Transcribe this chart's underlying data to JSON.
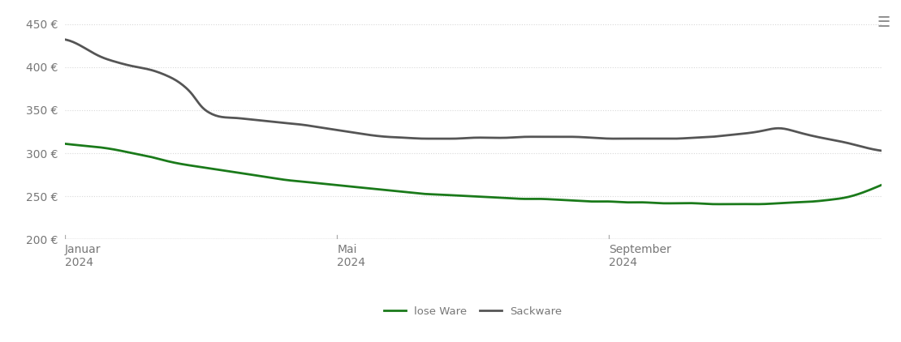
{
  "lose_ware_x": [
    0,
    2,
    4,
    6,
    8,
    10,
    12,
    14,
    16,
    18,
    20,
    22,
    24,
    26,
    28,
    30,
    32,
    34,
    36,
    38,
    40,
    42,
    44,
    46,
    48,
    50,
    52,
    54,
    56,
    58,
    60,
    62,
    64,
    66,
    68,
    70,
    72,
    74,
    76,
    78,
    80,
    82,
    84,
    86,
    88,
    90,
    92,
    94,
    96
  ],
  "lose_ware_y": [
    311,
    309,
    307,
    304,
    300,
    296,
    291,
    287,
    284,
    281,
    278,
    275,
    272,
    269,
    267,
    265,
    263,
    261,
    259,
    257,
    255,
    253,
    252,
    251,
    250,
    249,
    248,
    247,
    247,
    246,
    245,
    244,
    244,
    243,
    243,
    242,
    242,
    242,
    241,
    241,
    241,
    241,
    242,
    243,
    244,
    246,
    249,
    255,
    263
  ],
  "sackware_x": [
    0,
    2,
    4,
    6,
    8,
    10,
    12,
    13,
    14,
    15,
    16,
    17,
    18,
    20,
    22,
    24,
    26,
    28,
    30,
    32,
    34,
    36,
    38,
    40,
    42,
    44,
    46,
    48,
    50,
    52,
    54,
    56,
    58,
    60,
    62,
    64,
    66,
    68,
    70,
    72,
    74,
    76,
    78,
    80,
    82,
    84,
    86,
    88,
    90,
    92,
    94,
    96
  ],
  "sackware_y": [
    432,
    424,
    413,
    406,
    401,
    397,
    390,
    385,
    378,
    368,
    355,
    347,
    343,
    341,
    339,
    337,
    335,
    333,
    330,
    327,
    324,
    321,
    319,
    318,
    317,
    317,
    317,
    318,
    318,
    318,
    319,
    319,
    319,
    319,
    318,
    317,
    317,
    317,
    317,
    317,
    318,
    319,
    321,
    323,
    326,
    329,
    325,
    320,
    316,
    312,
    307,
    303
  ],
  "lose_ware_color": "#1a7a1a",
  "sackware_color": "#555555",
  "background_color": "#ffffff",
  "grid_color": "#d8d8d8",
  "ylim": [
    200,
    460
  ],
  "yticks": [
    200,
    250,
    300,
    350,
    400,
    450
  ],
  "xlim": [
    0,
    96
  ],
  "xlabel_ticks": [
    0,
    32,
    64
  ],
  "xlabel_labels": [
    "Januar\n2024",
    "Mai\n2024",
    "September\n2024"
  ],
  "legend_lose": "lose Ware",
  "legend_sack": "Sackware",
  "line_width": 2.0,
  "axis_line_color": "#aaaaaa",
  "label_color": "#777777",
  "tick_label_fontsize": 10
}
